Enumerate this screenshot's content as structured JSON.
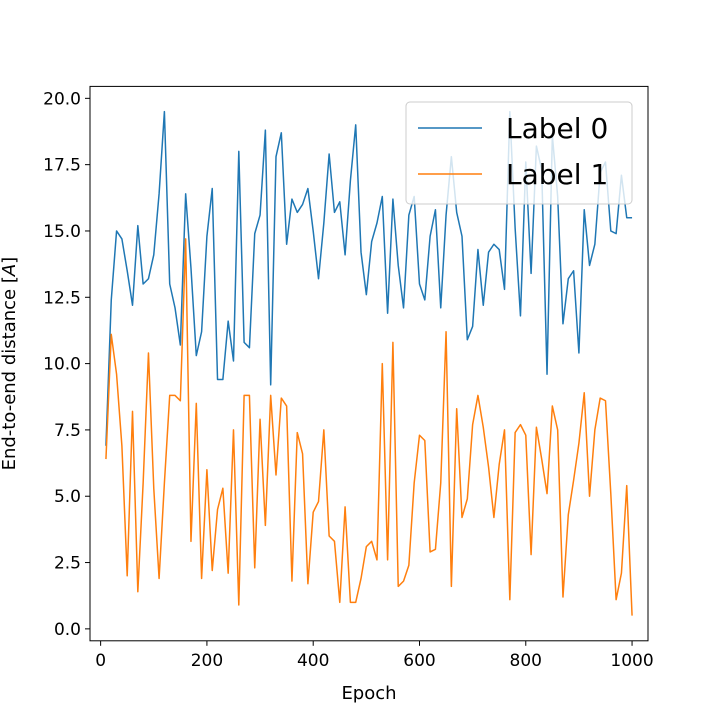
{
  "chart_data": {
    "type": "line",
    "title": "",
    "xlabel": "Epoch",
    "ylabel": "End-to-end distance [A]",
    "ylabel_prefix": "End-to-end distance [",
    "ylabel_unit": "A",
    "ylabel_suffix": "]",
    "xlim": [
      -20,
      1030
    ],
    "ylim": [
      -0.45,
      20.45
    ],
    "xticks": [
      0,
      200,
      400,
      600,
      800,
      1000
    ],
    "xtick_labels": [
      "0",
      "200",
      "400",
      "600",
      "800",
      "1000"
    ],
    "yticks": [
      0,
      2.5,
      5,
      7.5,
      10,
      12.5,
      15,
      17.5,
      20
    ],
    "ytick_labels": [
      "0.0",
      "2.5",
      "5.0",
      "7.5",
      "10.0",
      "12.5",
      "15.0",
      "17.5",
      "20.0"
    ],
    "grid": false,
    "legend_position": "top-right",
    "x": [
      10,
      20,
      30,
      40,
      50,
      60,
      70,
      80,
      90,
      100,
      110,
      120,
      130,
      140,
      150,
      160,
      170,
      180,
      190,
      200,
      210,
      220,
      230,
      240,
      250,
      260,
      270,
      280,
      290,
      300,
      310,
      320,
      330,
      340,
      350,
      360,
      370,
      380,
      390,
      400,
      410,
      420,
      430,
      440,
      450,
      460,
      470,
      480,
      490,
      500,
      510,
      520,
      530,
      540,
      550,
      560,
      570,
      580,
      590,
      600,
      610,
      620,
      630,
      640,
      650,
      660,
      670,
      680,
      690,
      700,
      710,
      720,
      730,
      740,
      750,
      760,
      770,
      780,
      790,
      800,
      810,
      820,
      830,
      840,
      850,
      860,
      870,
      880,
      890,
      900,
      910,
      920,
      930,
      940,
      950,
      960,
      970,
      980,
      990,
      1000
    ],
    "series": [
      {
        "name": "Label 0",
        "color": "#1f77b4",
        "values": [
          6.9,
          12.4,
          15.0,
          14.7,
          13.5,
          12.2,
          15.2,
          13.0,
          13.2,
          14.1,
          16.4,
          19.5,
          13.0,
          12.1,
          10.7,
          16.4,
          13.6,
          10.3,
          11.2,
          14.8,
          16.6,
          9.4,
          9.4,
          11.6,
          10.1,
          18.0,
          10.8,
          10.6,
          14.9,
          15.6,
          18.8,
          9.2,
          17.8,
          18.7,
          14.5,
          16.2,
          15.7,
          16.0,
          16.6,
          15.0,
          13.2,
          15.3,
          17.9,
          15.7,
          16.1,
          14.1,
          16.9,
          19.0,
          14.2,
          12.6,
          14.6,
          15.3,
          16.3,
          11.9,
          16.2,
          13.7,
          12.1,
          15.6,
          16.3,
          13.0,
          12.4,
          14.8,
          15.8,
          12.1,
          15.6,
          17.8,
          15.7,
          14.8,
          10.9,
          11.4,
          14.3,
          12.2,
          14.2,
          14.5,
          14.3,
          12.8,
          19.5,
          15.1,
          11.8,
          17.6,
          13.4,
          18.2,
          17.3,
          9.6,
          18.6,
          16.3,
          11.5,
          13.2,
          13.5,
          10.4,
          15.8,
          13.7,
          14.5,
          17.2,
          17.6,
          15.0,
          14.9,
          17.1,
          15.5,
          15.5
        ],
        "note": ""
      },
      {
        "name": "Label 1",
        "color": "#ff7f0e",
        "values": [
          6.4,
          11.1,
          9.6,
          6.9,
          2.0,
          8.2,
          1.4,
          5.5,
          10.4,
          5.3,
          1.9,
          5.5,
          8.8,
          8.8,
          8.6,
          14.7,
          3.3,
          8.5,
          1.9,
          6.0,
          2.2,
          4.5,
          5.3,
          2.1,
          7.5,
          0.9,
          8.8,
          8.8,
          2.3,
          7.9,
          3.9,
          8.8,
          5.8,
          8.7,
          8.4,
          1.8,
          7.4,
          6.6,
          1.7,
          4.4,
          4.8,
          7.5,
          3.5,
          3.3,
          1.0,
          4.6,
          1.0,
          1.0,
          1.9,
          3.1,
          3.3,
          2.6,
          10.0,
          2.6,
          10.8,
          1.6,
          1.8,
          2.4,
          5.5,
          7.3,
          7.1,
          2.9,
          3.0,
          5.5,
          11.2,
          1.6,
          8.3,
          4.2,
          4.9,
          7.7,
          8.8,
          7.6,
          6.1,
          4.2,
          6.2,
          7.5,
          1.1,
          7.4,
          7.7,
          7.3,
          2.8,
          7.6,
          6.4,
          5.1,
          8.4,
          7.5,
          1.2,
          4.3,
          5.6,
          7.0,
          8.9,
          5.0,
          7.5,
          8.7,
          8.6,
          5.1,
          1.1,
          2.1,
          5.4,
          0.5
        ]
      }
    ]
  }
}
